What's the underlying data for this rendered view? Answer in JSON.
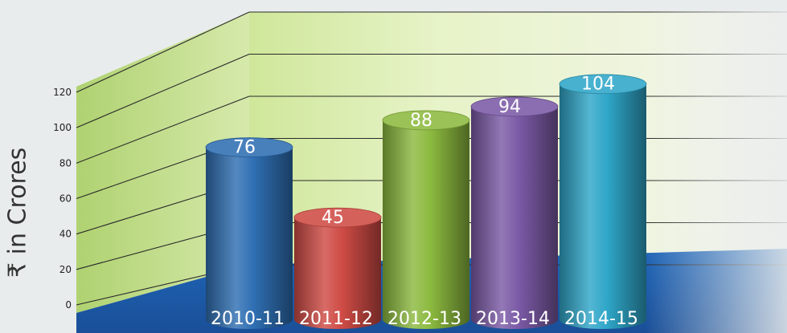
{
  "chart_data": {
    "type": "bar",
    "style": "3d-cylinder",
    "categories": [
      "2010-11",
      "2011-12",
      "2012-13",
      "2013-14",
      "2014-15"
    ],
    "values": [
      76,
      45,
      88,
      94,
      104
    ],
    "data_labels": [
      "76",
      "45",
      "88",
      "94",
      "104"
    ],
    "ylabel": "₹ in Crores",
    "yticks": [
      "0",
      "20",
      "40",
      "60",
      "80",
      "100",
      "120"
    ],
    "ylim": [
      0,
      120
    ],
    "grid": true,
    "colors": [
      "#2f6fb3",
      "#cf4b45",
      "#8cba3f",
      "#7b5aa6",
      "#2fa6c8"
    ],
    "floor_color": "#1f5fae",
    "wall_color": "#dff0b8"
  }
}
